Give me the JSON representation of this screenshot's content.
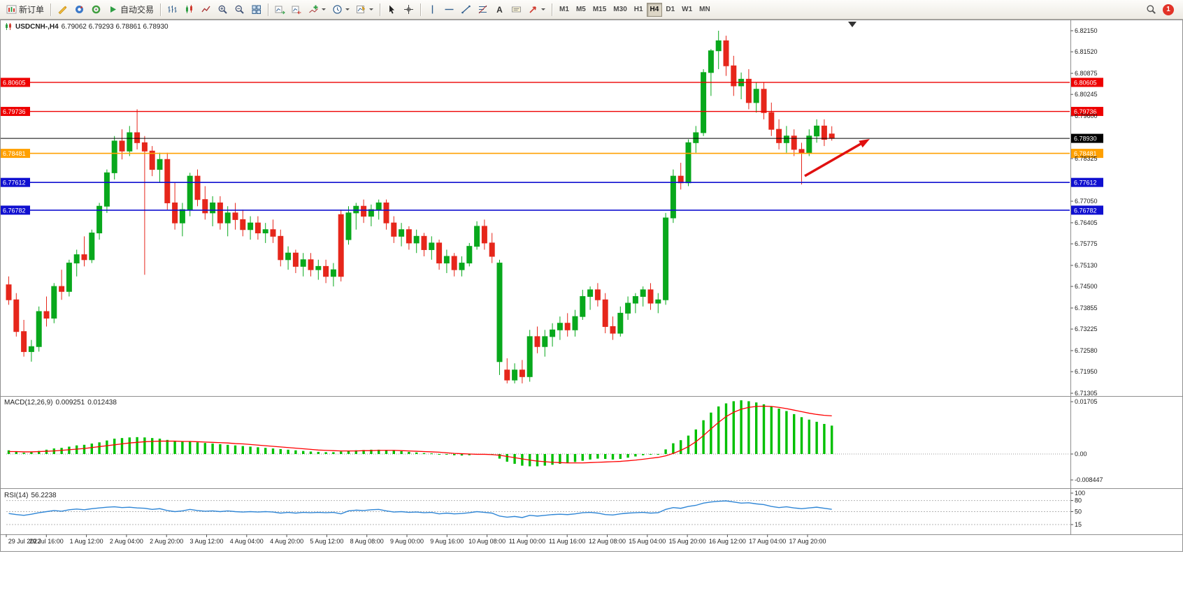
{
  "toolbar": {
    "new_order_label": "新订单",
    "autotrading_label": "自动交易",
    "timeframes": [
      "M1",
      "M5",
      "M15",
      "M30",
      "H1",
      "H4",
      "D1",
      "W1",
      "MN"
    ],
    "active_timeframe": "H4",
    "notification_count": "1",
    "icons": [
      "new-order",
      "metaeditor",
      "community",
      "sounds",
      "autotrading-play",
      "bar-chart",
      "candlestick-chart",
      "line-chart",
      "zoom-in",
      "zoom-out",
      "tile-windows",
      "auto-scroll",
      "chart-shift",
      "indicators-plus",
      "periods-clock",
      "templates",
      "cursor-arrow",
      "crosshair",
      "vertical-line",
      "horizontal-line",
      "trendline",
      "fibonacci",
      "text",
      "text-label",
      "arrows",
      "search-magnifier",
      "notification-badge"
    ]
  },
  "chart_data": {
    "type": "candlestick",
    "symbol_tf": "USDCNH-,H4",
    "ohlc_text": "6.79062 6.79293 6.78861 6.78930",
    "ohlc_display": {
      "open": "6.79062",
      "high": "6.79293",
      "low": "6.78861",
      "close": "6.78930"
    },
    "colors": {
      "up_candle": "#08a81c",
      "down_candle": "#e6261b",
      "resistance_line": "#ee0000",
      "support_line": "#1010d0",
      "pivot_line": "#ffa000",
      "current_price": "#000000",
      "macd_histogram": "#00c000",
      "macd_signal": "#ff0000",
      "rsi_line": "#2f86d6",
      "arrow": "#e01010"
    },
    "price_axis_labels": [
      "6.82150",
      "6.81520",
      "6.80875",
      "6.80245",
      "6.79600",
      "6.78325",
      "6.77050",
      "6.76405",
      "6.75775",
      "6.75130",
      "6.74500",
      "6.73855",
      "6.73225",
      "6.72580",
      "6.71950",
      "6.71305"
    ],
    "hlines": [
      {
        "price": 6.80605,
        "label": "6.80605",
        "color": "#ee0000",
        "width": 1.4
      },
      {
        "price": 6.79736,
        "label": "6.79736",
        "color": "#ee0000",
        "width": 1.4
      },
      {
        "price": 6.78481,
        "label": "6.78481",
        "color": "#ffa000",
        "width": 1.6
      },
      {
        "price": 6.77612,
        "label": "6.77612",
        "color": "#1010d0",
        "width": 1.6
      },
      {
        "price": 6.76782,
        "label": "6.76782",
        "color": "#1010d0",
        "width": 1.6
      }
    ],
    "price_line": {
      "price": 6.7893,
      "label": "6.78930",
      "color": "#000000"
    },
    "time_labels": [
      "29 Jul 2022",
      "29 Jul 16:00",
      "1 Aug 12:00",
      "2 Aug 04:00",
      "2 Aug 20:00",
      "3 Aug 12:00",
      "4 Aug 04:00",
      "4 Aug 20:00",
      "5 Aug 12:00",
      "8 Aug 08:00",
      "9 Aug 00:00",
      "9 Aug 16:00",
      "10 Aug 08:00",
      "11 Aug 00:00",
      "11 Aug 16:00",
      "12 Aug 08:00",
      "15 Aug 04:00",
      "15 Aug 20:00",
      "16 Aug 12:00",
      "17 Aug 04:00",
      "17 Aug 20:00"
    ],
    "candles": [
      [
        6.7455,
        6.748,
        6.7395,
        6.741
      ],
      [
        6.741,
        6.743,
        6.73,
        6.7315
      ],
      [
        6.7315,
        6.735,
        6.724,
        6.7255
      ],
      [
        6.7255,
        6.729,
        6.7225,
        6.727
      ],
      [
        6.727,
        6.739,
        6.7255,
        6.7375
      ],
      [
        6.7375,
        6.742,
        6.733,
        6.7355
      ],
      [
        6.7355,
        6.746,
        6.734,
        6.745
      ],
      [
        6.745,
        6.75,
        6.741,
        6.7435
      ],
      [
        6.7435,
        6.753,
        6.742,
        6.752
      ],
      [
        6.752,
        6.756,
        6.748,
        6.7545
      ],
      [
        6.7545,
        6.76,
        6.751,
        6.753
      ],
      [
        6.753,
        6.762,
        6.752,
        6.761
      ],
      [
        6.761,
        6.77,
        6.759,
        6.769
      ],
      [
        6.769,
        6.78,
        6.767,
        6.779
      ],
      [
        6.779,
        6.79,
        6.777,
        6.7885
      ],
      [
        6.7885,
        6.792,
        6.783,
        6.7855
      ],
      [
        6.7855,
        6.793,
        6.784,
        6.791
      ],
      [
        6.791,
        6.798,
        6.786,
        6.788
      ],
      [
        6.788,
        6.79,
        6.7485,
        6.7855
      ],
      [
        6.7855,
        6.787,
        6.778,
        6.78
      ],
      [
        6.78,
        6.785,
        6.776,
        6.783
      ],
      [
        6.783,
        6.785,
        6.768,
        6.77
      ],
      [
        6.77,
        6.776,
        6.762,
        6.764
      ],
      [
        6.764,
        6.77,
        6.76,
        6.768
      ],
      [
        6.768,
        6.779,
        6.766,
        6.778
      ],
      [
        6.778,
        6.78,
        6.769,
        6.771
      ],
      [
        6.771,
        6.775,
        6.765,
        6.767
      ],
      [
        6.767,
        6.772,
        6.763,
        6.77
      ],
      [
        6.77,
        6.772,
        6.762,
        6.764
      ],
      [
        6.764,
        6.769,
        6.76,
        6.767
      ],
      [
        6.767,
        6.77,
        6.762,
        6.765
      ],
      [
        6.765,
        6.768,
        6.76,
        6.762
      ],
      [
        6.762,
        6.766,
        6.759,
        6.764
      ],
      [
        6.764,
        6.766,
        6.759,
        6.761
      ],
      [
        6.761,
        6.764,
        6.758,
        6.762
      ],
      [
        6.762,
        6.765,
        6.758,
        6.76
      ],
      [
        6.76,
        6.762,
        6.751,
        6.753
      ],
      [
        6.753,
        6.757,
        6.75,
        6.755
      ],
      [
        6.755,
        6.756,
        6.749,
        6.751
      ],
      [
        6.751,
        6.755,
        6.748,
        6.753
      ],
      [
        6.753,
        6.755,
        6.748,
        6.75
      ],
      [
        6.75,
        6.753,
        6.747,
        6.751
      ],
      [
        6.751,
        6.753,
        6.746,
        6.748
      ],
      [
        6.748,
        6.752,
        6.745,
        6.75
      ],
      [
        6.7665,
        6.768,
        6.7465,
        6.748
      ],
      [
        6.759,
        6.769,
        6.7575,
        6.767
      ],
      [
        6.767,
        6.77,
        6.762,
        6.769
      ],
      [
        6.769,
        6.771,
        6.764,
        6.766
      ],
      [
        6.766,
        6.7695,
        6.763,
        6.768
      ],
      [
        6.768,
        6.771,
        6.765,
        6.77
      ],
      [
        6.77,
        6.771,
        6.762,
        6.764
      ],
      [
        6.764,
        6.766,
        6.758,
        6.76
      ],
      [
        6.76,
        6.764,
        6.757,
        6.762
      ],
      [
        6.762,
        6.763,
        6.756,
        6.758
      ],
      [
        6.758,
        6.762,
        6.755,
        6.76
      ],
      [
        6.76,
        6.761,
        6.754,
        6.756
      ],
      [
        6.756,
        6.76,
        6.753,
        6.758
      ],
      [
        6.758,
        6.759,
        6.75,
        6.752
      ],
      [
        6.752,
        6.756,
        6.749,
        6.754
      ],
      [
        6.754,
        6.755,
        6.748,
        6.75
      ],
      [
        6.75,
        6.754,
        6.748,
        6.752
      ],
      [
        6.752,
        6.758,
        6.751,
        6.757
      ],
      [
        6.757,
        6.7645,
        6.756,
        6.763
      ],
      [
        6.763,
        6.765,
        6.756,
        6.758
      ],
      [
        6.758,
        6.761,
        6.752,
        6.754
      ],
      [
        6.7225,
        6.753,
        6.7185,
        6.752
      ],
      [
        6.72,
        6.7235,
        6.716,
        6.717
      ],
      [
        6.717,
        6.722,
        6.716,
        6.72
      ],
      [
        6.72,
        6.723,
        6.716,
        6.718
      ],
      [
        6.718,
        6.732,
        6.7165,
        6.73
      ],
      [
        6.73,
        6.733,
        6.725,
        6.727
      ],
      [
        6.727,
        6.732,
        6.724,
        6.73
      ],
      [
        6.73,
        6.734,
        6.727,
        6.732
      ],
      [
        6.732,
        6.736,
        6.729,
        6.734
      ],
      [
        6.734,
        6.737,
        6.73,
        6.732
      ],
      [
        6.732,
        6.738,
        6.73,
        6.736
      ],
      [
        6.736,
        6.744,
        6.735,
        6.742
      ],
      [
        6.742,
        6.745,
        6.738,
        6.744
      ],
      [
        6.744,
        6.746,
        6.739,
        6.741
      ],
      [
        6.741,
        6.743,
        6.731,
        6.733
      ],
      [
        6.733,
        6.736,
        6.729,
        6.731
      ],
      [
        6.731,
        6.739,
        6.73,
        6.737
      ],
      [
        6.737,
        6.742,
        6.735,
        6.74
      ],
      [
        6.74,
        6.743,
        6.737,
        6.742
      ],
      [
        6.742,
        6.745,
        6.739,
        6.744
      ],
      [
        6.744,
        6.746,
        6.738,
        6.74
      ],
      [
        6.74,
        6.743,
        6.737,
        6.741
      ],
      [
        6.741,
        6.767,
        6.7395,
        6.7655
      ],
      [
        6.7655,
        6.78,
        6.764,
        6.778
      ],
      [
        6.778,
        6.782,
        6.774,
        6.776
      ],
      [
        6.776,
        6.789,
        6.775,
        6.788
      ],
      [
        6.788,
        6.793,
        6.785,
        6.791
      ],
      [
        6.791,
        6.81,
        6.79,
        6.809
      ],
      [
        6.809,
        6.816,
        6.802,
        6.8155
      ],
      [
        6.8155,
        6.8215,
        6.81,
        6.8185
      ],
      [
        6.8185,
        6.82,
        6.808,
        6.811
      ],
      [
        6.811,
        6.814,
        6.802,
        6.805
      ],
      [
        6.805,
        6.809,
        6.801,
        6.807
      ],
      [
        6.807,
        6.81,
        6.798,
        6.8
      ],
      [
        6.8,
        6.806,
        6.797,
        6.804
      ],
      [
        6.804,
        6.806,
        6.795,
        6.797
      ],
      [
        6.797,
        6.8,
        6.79,
        6.792
      ],
      [
        6.792,
        6.795,
        6.786,
        6.788
      ],
      [
        6.788,
        6.793,
        6.785,
        6.79
      ],
      [
        6.79,
        6.792,
        6.784,
        6.786
      ],
      [
        6.786,
        6.788,
        6.7755,
        6.785
      ],
      [
        6.785,
        6.792,
        6.784,
        6.79
      ],
      [
        6.79,
        6.795,
        6.788,
        6.793
      ],
      [
        6.793,
        6.795,
        6.787,
        6.789
      ],
      [
        6.79062,
        6.79293,
        6.78861,
        6.7893
      ]
    ],
    "macd": {
      "label": "MACD(12,26,9)",
      "value_main": "0.009251",
      "value_signal": "0.012438",
      "axis_labels": [
        "0.01705",
        "0.00",
        "-0.008447"
      ],
      "histogram": [
        0.0012,
        0.0008,
        0.0004,
        0.0006,
        0.001,
        0.0014,
        0.0018,
        0.002,
        0.0024,
        0.0028,
        0.003,
        0.0034,
        0.0038,
        0.0044,
        0.005,
        0.0052,
        0.0054,
        0.0055,
        0.0054,
        0.0052,
        0.005,
        0.0046,
        0.0042,
        0.004,
        0.004,
        0.0038,
        0.0036,
        0.0034,
        0.0032,
        0.003,
        0.0028,
        0.0026,
        0.0024,
        0.0022,
        0.002,
        0.0018,
        0.0016,
        0.0014,
        0.0012,
        0.001,
        0.0008,
        0.0007,
        0.0006,
        0.0006,
        0.0008,
        0.001,
        0.0012,
        0.0013,
        0.0014,
        0.0014,
        0.0013,
        0.0011,
        0.0009,
        0.0007,
        0.0005,
        0.0003,
        0.0002,
        0.0,
        -0.0002,
        -0.0004,
        -0.0005,
        -0.0004,
        -0.0002,
        -0.0001,
        -0.0003,
        -0.0015,
        -0.0025,
        -0.0032,
        -0.0038,
        -0.004,
        -0.004,
        -0.0038,
        -0.0035,
        -0.0032,
        -0.003,
        -0.0026,
        -0.0022,
        -0.0018,
        -0.0015,
        -0.0016,
        -0.0018,
        -0.0016,
        -0.0012,
        -0.0008,
        -0.0004,
        -0.0002,
        0.0,
        0.0015,
        0.0035,
        0.0045,
        0.006,
        0.008,
        0.011,
        0.0135,
        0.0155,
        0.0165,
        0.0172,
        0.0175,
        0.0172,
        0.0168,
        0.0162,
        0.0155,
        0.0148,
        0.014,
        0.013,
        0.012,
        0.0112,
        0.0105,
        0.0098,
        0.00925
      ],
      "signal": [
        0.0008,
        0.0008,
        0.0007,
        0.0007,
        0.0008,
        0.0009,
        0.001,
        0.0012,
        0.0014,
        0.0016,
        0.0018,
        0.0021,
        0.0024,
        0.0027,
        0.003,
        0.0033,
        0.0036,
        0.0038,
        0.004,
        0.0041,
        0.0042,
        0.0042,
        0.0042,
        0.0041,
        0.0041,
        0.004,
        0.0039,
        0.0038,
        0.0037,
        0.0036,
        0.0034,
        0.0033,
        0.0031,
        0.0029,
        0.0027,
        0.0025,
        0.0023,
        0.0021,
        0.0019,
        0.0017,
        0.0015,
        0.0013,
        0.0012,
        0.0011,
        0.001,
        0.001,
        0.001,
        0.0011,
        0.0011,
        0.0012,
        0.0012,
        0.0012,
        0.0011,
        0.001,
        0.0009,
        0.0008,
        0.0007,
        0.0006,
        0.0004,
        0.0002,
        0.0001,
        0.0,
        -0.0001,
        -0.0001,
        -0.0002,
        -0.0004,
        -0.0008,
        -0.0012,
        -0.0016,
        -0.002,
        -0.0023,
        -0.0025,
        -0.0027,
        -0.0028,
        -0.0029,
        -0.0029,
        -0.0029,
        -0.0028,
        -0.0027,
        -0.0026,
        -0.0025,
        -0.0024,
        -0.0022,
        -0.002,
        -0.0017,
        -0.0014,
        -0.0011,
        -0.0006,
        0.0002,
        0.0012,
        0.0024,
        0.004,
        0.006,
        0.0082,
        0.0103,
        0.0122,
        0.0136,
        0.0146,
        0.0152,
        0.0155,
        0.0156,
        0.0155,
        0.0152,
        0.0148,
        0.0143,
        0.0138,
        0.0133,
        0.0129,
        0.0126,
        0.012438
      ]
    },
    "rsi": {
      "label": "RSI(14)",
      "value": "56.2238",
      "axis_labels": [
        "100",
        "80",
        "50",
        "15"
      ],
      "levels": [
        80,
        50,
        15
      ],
      "values": [
        45,
        42,
        40,
        43,
        47,
        50,
        53,
        51,
        55,
        57,
        55,
        58,
        60,
        62,
        63,
        61,
        62,
        60,
        59,
        56,
        58,
        53,
        50,
        52,
        56,
        53,
        51,
        52,
        50,
        52,
        50,
        49,
        50,
        49,
        50,
        49,
        46,
        48,
        46,
        48,
        47,
        48,
        47,
        48,
        44,
        52,
        54,
        53,
        55,
        56,
        52,
        49,
        50,
        48,
        49,
        47,
        48,
        44,
        46,
        44,
        45,
        47,
        50,
        48,
        46,
        38,
        35,
        37,
        34,
        40,
        38,
        40,
        42,
        43,
        42,
        44,
        47,
        48,
        46,
        42,
        41,
        44,
        46,
        47,
        48,
        46,
        47,
        56,
        61,
        59,
        64,
        67,
        73,
        76,
        78,
        79,
        76,
        73,
        74,
        71,
        69,
        64,
        61,
        63,
        60,
        58,
        60,
        62,
        59,
        56.2
      ]
    },
    "arrow_annotation": {
      "from": [
        1150,
        253
      ],
      "to": [
        1230,
        207
      ],
      "tip": [
        1243,
        200
      ],
      "color": "#e01010"
    }
  }
}
